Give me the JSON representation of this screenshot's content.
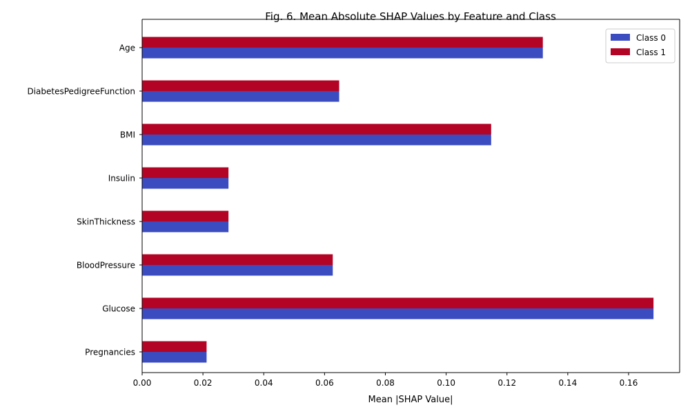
{
  "chart_data": {
    "type": "bar",
    "orientation": "horizontal",
    "title": "Fig. 6. Mean Absolute SHAP Values by Feature and Class",
    "xlabel": "Mean |SHAP Value|",
    "ylabel": "",
    "xlim": [
      0,
      0.1768
    ],
    "xticks": [
      "0.00",
      "0.02",
      "0.04",
      "0.06",
      "0.08",
      "0.10",
      "0.12",
      "0.14",
      "0.16"
    ],
    "grid": false,
    "legend_position": "top-right",
    "categories": [
      "Pregnancies",
      "Glucose",
      "BloodPressure",
      "SkinThickness",
      "Insulin",
      "BMI",
      "DiabetesPedigreeFunction",
      "Age"
    ],
    "series": [
      {
        "name": "Class 0",
        "color": "#3b4cc0",
        "values": [
          0.0212,
          0.1682,
          0.0627,
          0.0284,
          0.0284,
          0.1148,
          0.0648,
          0.1318
        ]
      },
      {
        "name": "Class 1",
        "color": "#b40426",
        "values": [
          0.0212,
          0.1682,
          0.0627,
          0.0284,
          0.0284,
          0.1148,
          0.0648,
          0.1318
        ]
      }
    ]
  }
}
